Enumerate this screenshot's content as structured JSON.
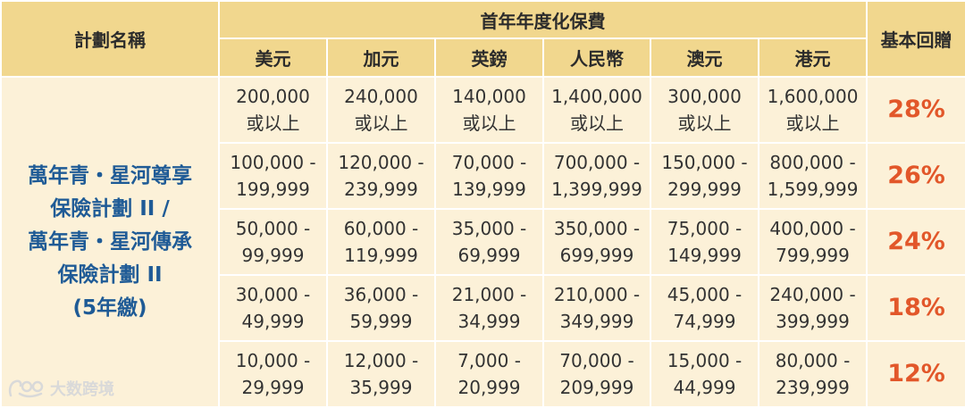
{
  "header": {
    "plan_name": "計劃名稱",
    "premium_group": "首年年度化保費",
    "basic_bonus": "基本回贈",
    "currencies": [
      "美元",
      "加元",
      "英鎊",
      "人民幣",
      "澳元",
      "港元"
    ]
  },
  "plan": {
    "lines": [
      "萬年青・星河尊享",
      "保險計劃 II /",
      "萬年青・星河傳承",
      "保險計劃 II",
      "(5年繳)"
    ]
  },
  "rows": [
    {
      "cells": [
        [
          "200,000",
          "或以上"
        ],
        [
          "240,000",
          "或以上"
        ],
        [
          "140,000",
          "或以上"
        ],
        [
          "1,400,000",
          "或以上"
        ],
        [
          "300,000",
          "或以上"
        ],
        [
          "1,600,000",
          "或以上"
        ]
      ],
      "rate": "28%"
    },
    {
      "cells": [
        [
          "100,000 -",
          "199,999"
        ],
        [
          "120,000 -",
          "239,999"
        ],
        [
          "70,000 -",
          "139,999"
        ],
        [
          "700,000 -",
          "1,399,999"
        ],
        [
          "150,000 -",
          "299,999"
        ],
        [
          "800,000 -",
          "1,599,999"
        ]
      ],
      "rate": "26%"
    },
    {
      "cells": [
        [
          "50,000 -",
          "99,999"
        ],
        [
          "60,000 -",
          "119,999"
        ],
        [
          "35,000 -",
          "69,999"
        ],
        [
          "350,000 -",
          "699,999"
        ],
        [
          "75,000 -",
          "149,999"
        ],
        [
          "400,000 -",
          "799,999"
        ]
      ],
      "rate": "24%"
    },
    {
      "cells": [
        [
          "30,000 -",
          "49,999"
        ],
        [
          "36,000 -",
          "59,999"
        ],
        [
          "21,000 -",
          "34,999"
        ],
        [
          "210,000 -",
          "349,999"
        ],
        [
          "45,000 -",
          "74,999"
        ],
        [
          "240,000 -",
          "399,999"
        ]
      ],
      "rate": "18%"
    },
    {
      "cells": [
        [
          "10,000 -",
          "29,999"
        ],
        [
          "12,000 -",
          "35,999"
        ],
        [
          "7,000 -",
          "20,999"
        ],
        [
          "70,000 -",
          "209,999"
        ],
        [
          "15,000 -",
          "44,999"
        ],
        [
          "80,000 -",
          "239,999"
        ]
      ],
      "rate": "12%"
    }
  ],
  "watermark": {
    "text": "大数跨境",
    "icon": "watermark-logo-icon"
  }
}
